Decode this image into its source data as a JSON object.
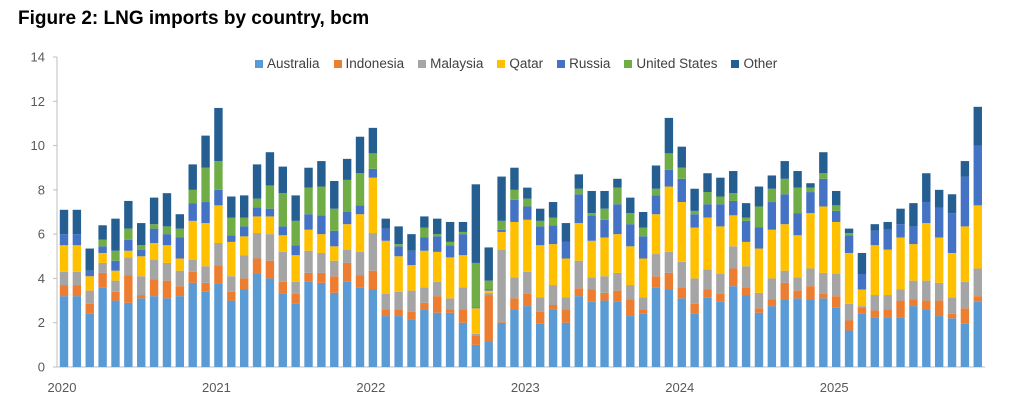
{
  "chart_data": {
    "type": "bar",
    "stacked": true,
    "title": "Figure 2: LNG imports by country, bcm",
    "xlabel": "",
    "ylabel": "",
    "ylim": [
      0,
      14
    ],
    "y_ticks": [
      0,
      2,
      4,
      6,
      8,
      10,
      12,
      14
    ],
    "x_tick_labels": [
      "2020",
      "2021",
      "2022",
      "2023",
      "2024",
      "2025"
    ],
    "grid": false,
    "legend_position": "top",
    "categories": [
      "2020-01",
      "2020-02",
      "2020-03",
      "2020-04",
      "2020-05",
      "2020-06",
      "2020-07",
      "2020-08",
      "2020-09",
      "2020-10",
      "2020-11",
      "2020-12",
      "2021-01",
      "2021-02",
      "2021-03",
      "2021-04",
      "2021-05",
      "2021-06",
      "2021-07",
      "2021-08",
      "2021-09",
      "2021-10",
      "2021-11",
      "2021-12",
      "2022-01",
      "2022-02",
      "2022-03",
      "2022-04",
      "2022-05",
      "2022-06",
      "2022-07",
      "2022-08",
      "2022-09",
      "2022-10",
      "2022-11",
      "2022-12",
      "2023-01",
      "2023-02",
      "2023-03",
      "2023-04",
      "2023-05",
      "2023-06",
      "2023-07",
      "2023-08",
      "2023-09",
      "2023-10",
      "2023-11",
      "2023-12",
      "2024-01",
      "2024-02",
      "2024-03",
      "2024-04",
      "2024-05",
      "2024-06",
      "2024-07",
      "2024-08",
      "2024-09",
      "2024-10",
      "2024-11",
      "2024-12",
      "2025-01",
      "2025-02",
      "2025-03",
      "2025-04",
      "2025-05",
      "2025-06",
      "2025-07",
      "2025-08",
      "2025-09",
      "2025-10",
      "2025-11",
      "2025-12"
    ],
    "series": [
      {
        "name": "Australia",
        "color": "#5B9BD5",
        "values": [
          3.2,
          3.2,
          2.4,
          3.6,
          3.0,
          2.9,
          3.1,
          3.2,
          3.1,
          3.2,
          3.8,
          3.4,
          3.75,
          3.0,
          3.5,
          4.2,
          4.0,
          3.3,
          2.85,
          3.85,
          3.8,
          3.35,
          3.85,
          3.6,
          3.5,
          2.3,
          2.3,
          2.15,
          2.6,
          2.45,
          2.45,
          2.0,
          1.0,
          1.15,
          2.0,
          2.6,
          2.75,
          1.95,
          2.6,
          2.0,
          3.2,
          2.95,
          3.0,
          2.95,
          2.3,
          2.4,
          3.6,
          3.5,
          3.1,
          2.4,
          3.15,
          2.95,
          3.65,
          3.25,
          2.45,
          2.75,
          3.05,
          3.1,
          3.05,
          3.1,
          2.7,
          1.65,
          2.4,
          2.25,
          2.25,
          2.25,
          2.75,
          2.6,
          2.3,
          2.2,
          1.95,
          2.95
        ]
      },
      {
        "name": "Indonesia",
        "color": "#ED7D31",
        "values": [
          0.5,
          0.5,
          0.45,
          0.65,
          0.4,
          1.25,
          0.15,
          0.75,
          0.8,
          0.45,
          0.5,
          0.4,
          0.85,
          0.4,
          0.5,
          0.7,
          0.8,
          0.55,
          0.45,
          0.4,
          0.45,
          0.75,
          0.85,
          0.55,
          0.85,
          0.3,
          0.3,
          0.35,
          0.3,
          0.75,
          0.15,
          0.6,
          0.4,
          2.1,
          0.05,
          0.5,
          0.55,
          0.55,
          0.2,
          0.6,
          0.35,
          0.55,
          0.35,
          0.5,
          0.75,
          0.2,
          0.5,
          0.75,
          0.5,
          0.45,
          0.35,
          0.35,
          0.8,
          0.35,
          0.2,
          0.3,
          0.75,
          0.35,
          0.6,
          0.2,
          0.5,
          0.45,
          0.3,
          0.3,
          0.35,
          0.75,
          0.3,
          0.4,
          0.7,
          0.2,
          0.7,
          0.25
        ]
      },
      {
        "name": "Malaysia",
        "color": "#A5A5A5",
        "values": [
          0.6,
          0.6,
          0.6,
          0.45,
          0.5,
          0.8,
          0.85,
          0.9,
          0.8,
          0.7,
          0.55,
          0.75,
          1.0,
          0.7,
          1.05,
          1.15,
          1.2,
          1.35,
          0.55,
          1.0,
          0.9,
          0.7,
          0.6,
          1.05,
          1.7,
          0.7,
          0.8,
          0.95,
          0.7,
          0.65,
          0.5,
          1.0,
          0.1,
          0.1,
          3.25,
          0.95,
          1.0,
          0.65,
          0.9,
          0.55,
          1.25,
          0.55,
          0.75,
          0.8,
          0.65,
          0.55,
          1.0,
          0.95,
          1.15,
          1.15,
          0.9,
          0.9,
          1.0,
          0.95,
          0.7,
          0.95,
          0.55,
          0.6,
          0.8,
          0.95,
          1.0,
          0.75,
          0.05,
          0.7,
          0.65,
          0.5,
          0.85,
          0.9,
          0.8,
          0.75,
          1.2,
          1.25
        ]
      },
      {
        "name": "Qatar",
        "color": "#FFC000",
        "values": [
          1.2,
          1.2,
          0.65,
          0.45,
          0.45,
          0.3,
          0.9,
          0.75,
          0.8,
          0.55,
          1.75,
          1.95,
          1.7,
          1.55,
          0.85,
          0.75,
          0.8,
          0.75,
          1.2,
          0.95,
          0.85,
          0.65,
          1.15,
          1.7,
          2.5,
          2.4,
          1.6,
          1.15,
          1.65,
          1.35,
          1.85,
          1.45,
          1.15,
          0.1,
          0.8,
          2.5,
          2.35,
          2.35,
          1.85,
          1.75,
          1.7,
          1.65,
          1.75,
          1.75,
          1.75,
          1.75,
          1.8,
          2.95,
          2.7,
          2.3,
          2.35,
          2.15,
          1.4,
          1.1,
          2.0,
          2.2,
          2.1,
          1.9,
          2.5,
          3.0,
          2.35,
          2.3,
          0.75,
          2.25,
          2.05,
          2.35,
          1.65,
          2.6,
          2.05,
          2.0,
          2.5,
          2.85
        ]
      },
      {
        "name": "Russia",
        "color": "#4472C4",
        "values": [
          0.5,
          0.5,
          0.25,
          0.3,
          0.45,
          0.5,
          0.3,
          0.65,
          0.5,
          0.95,
          0.8,
          0.95,
          0.7,
          0.3,
          0.45,
          0.4,
          0.35,
          0.4,
          0.45,
          0.7,
          0.85,
          0.7,
          0.55,
          0.4,
          0.4,
          0.55,
          0.45,
          0.65,
          0.6,
          0.7,
          0.55,
          0.95,
          0.05,
          0.05,
          0.1,
          1.0,
          0.6,
          0.85,
          0.85,
          0.75,
          1.3,
          1.15,
          0.8,
          1.35,
          1.0,
          1.0,
          0.85,
          0.75,
          1.05,
          0.6,
          0.6,
          1.0,
          0.65,
          0.95,
          0.95,
          1.25,
          1.35,
          1.0,
          0.95,
          1.25,
          0.5,
          0.8,
          0.7,
          0.65,
          0.9,
          0.6,
          0.8,
          0.95,
          1.35,
          1.8,
          2.25,
          2.7
        ]
      },
      {
        "name": "United States",
        "color": "#70AD47",
        "values": [
          0,
          0,
          0,
          0.3,
          0.45,
          0.5,
          0.2,
          0.2,
          0.35,
          0.4,
          0.6,
          1.55,
          1.3,
          0.8,
          0.4,
          0.4,
          1.05,
          1.5,
          1.1,
          1.2,
          1.3,
          1.0,
          1.45,
          1.45,
          0.7,
          0,
          0.1,
          0,
          0.45,
          0.1,
          0.15,
          0.1,
          2.0,
          0.4,
          0.4,
          0.45,
          0.35,
          0.25,
          0.35,
          0,
          0.25,
          0.1,
          0.5,
          0.75,
          0.5,
          0.4,
          0.3,
          0.75,
          0.5,
          0.15,
          0.55,
          0.35,
          0.35,
          0.15,
          0.95,
          0.6,
          0.7,
          1.15,
          0.2,
          0.25,
          0.25,
          0.1,
          0,
          0,
          0,
          0,
          0,
          0,
          0,
          0,
          0,
          0
        ]
      },
      {
        "name": "Other",
        "color": "#255E91",
        "values": [
          1.1,
          1.1,
          1.0,
          0.65,
          1.45,
          1.25,
          1.0,
          1.2,
          1.5,
          0.65,
          1.15,
          1.45,
          2.4,
          0.95,
          1.0,
          1.55,
          1.5,
          1.2,
          1.15,
          0.9,
          1.15,
          1.25,
          0.95,
          1.65,
          1.15,
          0.45,
          0.8,
          0.75,
          0.5,
          0.7,
          0.9,
          0.45,
          3.55,
          1.5,
          2.0,
          1.0,
          0.5,
          0.55,
          0.7,
          0.85,
          0.65,
          1.0,
          0.8,
          0.4,
          0.7,
          0.7,
          1.05,
          1.6,
          0.95,
          1.0,
          0.85,
          0.85,
          1.0,
          0.65,
          0.9,
          0.6,
          0.8,
          0.75,
          0.2,
          0.95,
          0.65,
          0.2,
          0.95,
          0.3,
          0.35,
          0.7,
          1.05,
          1.3,
          0.8,
          0.85,
          0.7,
          1.75
        ]
      }
    ]
  }
}
